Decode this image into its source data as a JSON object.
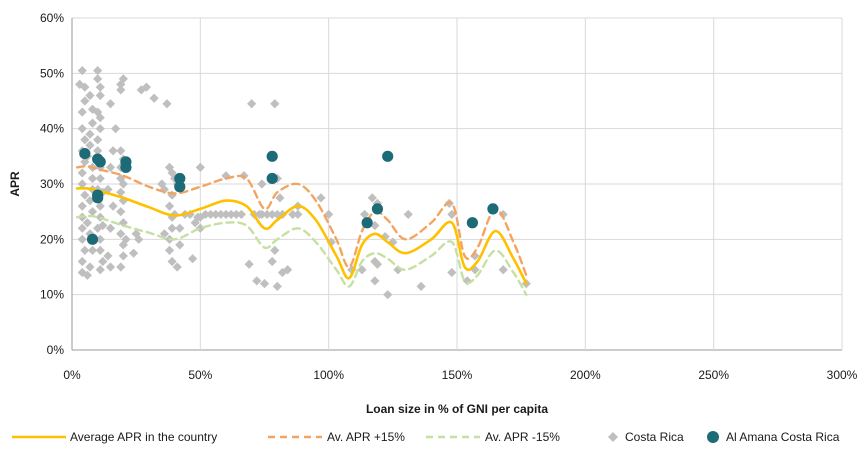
{
  "chart_data": {
    "type": "scatter",
    "title": "",
    "xlabel": "Loan size in % of GNI per capita",
    "ylabel": "APR",
    "xlim": [
      0,
      300
    ],
    "ylim": [
      0,
      60
    ],
    "x_ticks": [
      "0%",
      "50%",
      "100%",
      "150%",
      "200%",
      "250%",
      "300%"
    ],
    "y_ticks": [
      "0%",
      "10%",
      "20%",
      "30%",
      "40%",
      "50%",
      "60%"
    ],
    "grid": "vertical and horizontal",
    "legend_position": "bottom",
    "colors": {
      "average": "#FFC000",
      "plus15": "#F4A460",
      "minus15": "#C5E0A0",
      "costa_rica": "#BFBFBF",
      "al_amana": "#1E6B78"
    },
    "series": [
      {
        "name": "Average APR in the country",
        "type": "line",
        "style": "solid",
        "x": [
          2,
          6,
          10,
          20,
          30,
          40,
          50,
          60,
          68,
          75,
          80,
          88,
          95,
          103,
          108,
          113,
          118,
          123,
          130,
          140,
          148,
          153,
          158,
          165,
          172,
          177
        ],
        "y": [
          29.2,
          29.2,
          28.8,
          27.5,
          25.8,
          24.3,
          25.5,
          27,
          26,
          22,
          23.5,
          26,
          23.5,
          17,
          13,
          19,
          21,
          19.5,
          17.5,
          20,
          23,
          15,
          16,
          21.5,
          16.5,
          12
        ]
      },
      {
        "name": "Av. APR +15%",
        "type": "line",
        "style": "dashed",
        "x": [
          2,
          6,
          10,
          20,
          30,
          40,
          50,
          60,
          68,
          75,
          80,
          88,
          95,
          103,
          108,
          113,
          118,
          123,
          130,
          140,
          148,
          153,
          158,
          165,
          172,
          177
        ],
        "y": [
          33,
          33.2,
          32.7,
          31.5,
          29.5,
          28.3,
          29.5,
          31,
          31,
          25.5,
          28.5,
          30,
          27,
          20,
          15,
          21.5,
          25,
          23.5,
          20,
          23,
          26.5,
          17,
          18.5,
          25.5,
          19.5,
          13.5
        ]
      },
      {
        "name": "Av. APR -15%",
        "type": "line",
        "style": "dashed",
        "x": [
          2,
          6,
          10,
          20,
          30,
          40,
          50,
          60,
          68,
          75,
          80,
          88,
          95,
          103,
          108,
          113,
          118,
          123,
          130,
          140,
          148,
          153,
          158,
          165,
          172,
          177
        ],
        "y": [
          24,
          24.2,
          24,
          22.5,
          21.2,
          20,
          22,
          23,
          22.5,
          18.5,
          20,
          22,
          19.5,
          14.5,
          11.5,
          16,
          17.5,
          16.5,
          14.5,
          17,
          19.5,
          12.5,
          13.5,
          18,
          14,
          10
        ]
      },
      {
        "name": "Costa Rica",
        "type": "scatter",
        "marker": "diamond",
        "points": [
          [
            3,
            48
          ],
          [
            4,
            50.5
          ],
          [
            5,
            47.5
          ],
          [
            5,
            45
          ],
          [
            4,
            43
          ],
          [
            4,
            40
          ],
          [
            5,
            38
          ],
          [
            4,
            36
          ],
          [
            5,
            34
          ],
          [
            4,
            32
          ],
          [
            4,
            30
          ],
          [
            5,
            28
          ],
          [
            4,
            26
          ],
          [
            4,
            24
          ],
          [
            4,
            22
          ],
          [
            4,
            20
          ],
          [
            5,
            18
          ],
          [
            4,
            16
          ],
          [
            4,
            14
          ],
          [
            6,
            13.5
          ],
          [
            7,
            15
          ],
          [
            8,
            18
          ],
          [
            7,
            21
          ],
          [
            6,
            23
          ],
          [
            8,
            25
          ],
          [
            7,
            27
          ],
          [
            8,
            29
          ],
          [
            8,
            31
          ],
          [
            8,
            33
          ],
          [
            6,
            35
          ],
          [
            7,
            37
          ],
          [
            7,
            39
          ],
          [
            8,
            41
          ],
          [
            8,
            43.5
          ],
          [
            7,
            46
          ],
          [
            10,
            50.5
          ],
          [
            10,
            49
          ],
          [
            11,
            47.5
          ],
          [
            11,
            46
          ],
          [
            10,
            43
          ],
          [
            11,
            42
          ],
          [
            11,
            40
          ],
          [
            10,
            38
          ],
          [
            10,
            36
          ],
          [
            11,
            33
          ],
          [
            11,
            31
          ],
          [
            10,
            29
          ],
          [
            11,
            26
          ],
          [
            11,
            24
          ],
          [
            10,
            22
          ],
          [
            11,
            20
          ],
          [
            11,
            18
          ],
          [
            12,
            16
          ],
          [
            11,
            14.5
          ],
          [
            12,
            22.5
          ],
          [
            12,
            28.5
          ],
          [
            14,
            29
          ],
          [
            15,
            44.5
          ],
          [
            17,
            40
          ],
          [
            16,
            36
          ],
          [
            15,
            33
          ],
          [
            16,
            26
          ],
          [
            15,
            22
          ],
          [
            14,
            17
          ],
          [
            15,
            15
          ],
          [
            19,
            48
          ],
          [
            20,
            49
          ],
          [
            19,
            47
          ],
          [
            19,
            36
          ],
          [
            20,
            34.5
          ],
          [
            19,
            33
          ],
          [
            19,
            31
          ],
          [
            20,
            30
          ],
          [
            19,
            28.5
          ],
          [
            20,
            27
          ],
          [
            19,
            25
          ],
          [
            20,
            23
          ],
          [
            19,
            21
          ],
          [
            20,
            19
          ],
          [
            20,
            17
          ],
          [
            19,
            15
          ],
          [
            21,
            20
          ],
          [
            24,
            17.5
          ],
          [
            25,
            21
          ],
          [
            26,
            20
          ],
          [
            27,
            47
          ],
          [
            29,
            47.5
          ],
          [
            32,
            45.5
          ],
          [
            35,
            30
          ],
          [
            36,
            29
          ],
          [
            36,
            21
          ],
          [
            37,
            44.5
          ],
          [
            38,
            33
          ],
          [
            39,
            32
          ],
          [
            39,
            28
          ],
          [
            38,
            26
          ],
          [
            39,
            24
          ],
          [
            39,
            22
          ],
          [
            38,
            20
          ],
          [
            38,
            18
          ],
          [
            39,
            16
          ],
          [
            40,
            24.5
          ],
          [
            40,
            31
          ],
          [
            41,
            30
          ],
          [
            42,
            22
          ],
          [
            42,
            19
          ],
          [
            41,
            15
          ],
          [
            44,
            24.5
          ],
          [
            46,
            24.5
          ],
          [
            47,
            16.5
          ],
          [
            48,
            23
          ],
          [
            49,
            24
          ],
          [
            50,
            33
          ],
          [
            50,
            22
          ],
          [
            50,
            24
          ],
          [
            52,
            24.5
          ],
          [
            54,
            24.5
          ],
          [
            56,
            24.5
          ],
          [
            58,
            24.5
          ],
          [
            60,
            24.5
          ],
          [
            60,
            31.5
          ],
          [
            62,
            24.5
          ],
          [
            64,
            24.5
          ],
          [
            66,
            24.5
          ],
          [
            67,
            31.5
          ],
          [
            69,
            15.5
          ],
          [
            70,
            44.5
          ],
          [
            71,
            24.5
          ],
          [
            72,
            12.5
          ],
          [
            73,
            24.5
          ],
          [
            74,
            24.5
          ],
          [
            74,
            30
          ],
          [
            75,
            12
          ],
          [
            76,
            24.5
          ],
          [
            78,
            24.5
          ],
          [
            78,
            16
          ],
          [
            79,
            44.5
          ],
          [
            79,
            18
          ],
          [
            80,
            11.5
          ],
          [
            80,
            31
          ],
          [
            80,
            24.5
          ],
          [
            81,
            27.5
          ],
          [
            82,
            24.5
          ],
          [
            82,
            14
          ],
          [
            84,
            14.5
          ],
          [
            86,
            24.5
          ],
          [
            88,
            24.5
          ],
          [
            88,
            26
          ],
          [
            97,
            27.5
          ],
          [
            100,
            24.5
          ],
          [
            101,
            19.5
          ],
          [
            109,
            14.5
          ],
          [
            113,
            14.5
          ],
          [
            114,
            24.5
          ],
          [
            117,
            27.5
          ],
          [
            118,
            22.5
          ],
          [
            118,
            16
          ],
          [
            118,
            12.5
          ],
          [
            119,
            26.5
          ],
          [
            119,
            15.5
          ],
          [
            122,
            20.5
          ],
          [
            123,
            10
          ],
          [
            125,
            19.5
          ],
          [
            127,
            14.5
          ],
          [
            131,
            24.5
          ],
          [
            136,
            11.5
          ],
          [
            147,
            26.5
          ],
          [
            148,
            24.5
          ],
          [
            148,
            14
          ],
          [
            154,
            12.5
          ],
          [
            157,
            14.5
          ],
          [
            157,
            17
          ],
          [
            168,
            24.5
          ],
          [
            168,
            14.5
          ],
          [
            177,
            12
          ]
        ]
      },
      {
        "name": "Al Amana Costa Rica",
        "type": "scatter",
        "marker": "circle",
        "points": [
          [
            5,
            35.5
          ],
          [
            8,
            20
          ],
          [
            10,
            34.5
          ],
          [
            11,
            34
          ],
          [
            10,
            28
          ],
          [
            10,
            27.5
          ],
          [
            21,
            34
          ],
          [
            21,
            33
          ],
          [
            42,
            31
          ],
          [
            42,
            29.5
          ],
          [
            78,
            35
          ],
          [
            78,
            31
          ],
          [
            115,
            23
          ],
          [
            119,
            25.5
          ],
          [
            123,
            35
          ],
          [
            156,
            23
          ],
          [
            164,
            25.5
          ]
        ]
      }
    ]
  }
}
